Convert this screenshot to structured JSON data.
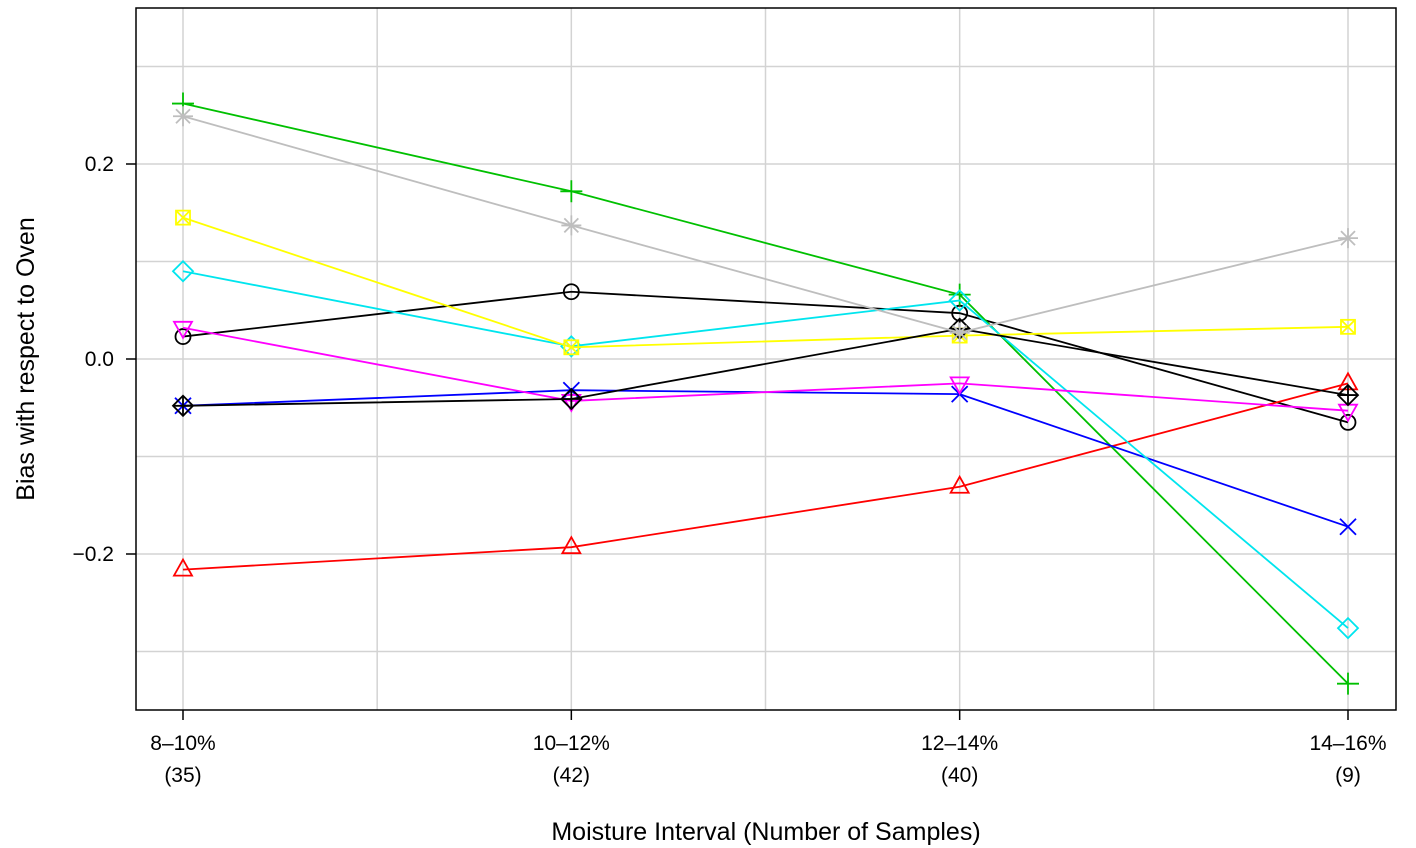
{
  "chart_data": {
    "type": "line",
    "title": "",
    "xlabel": "Moisture Interval (Number of Samples)",
    "ylabel": "Bias with respect to Oven",
    "categories": [
      "8–10%",
      "10–12%",
      "12–14%",
      "14–16%"
    ],
    "category_counts": [
      "(35)",
      "(42)",
      "(40)",
      "(9)"
    ],
    "ylim": [
      -0.36,
      0.36
    ],
    "yticks": [
      {
        "value": -0.2,
        "label": "−0.2"
      },
      {
        "value": 0.0,
        "label": "0.0"
      },
      {
        "value": 0.2,
        "label": "0.2"
      }
    ],
    "grid": true,
    "legend": "none",
    "series": [
      {
        "color": "#000000",
        "marker": "circle",
        "values": [
          0.023,
          0.069,
          0.047,
          -0.065
        ]
      },
      {
        "color": "#ff0000",
        "marker": "triangle-up",
        "values": [
          -0.216,
          -0.193,
          -0.131,
          -0.025
        ]
      },
      {
        "color": "#00c000",
        "marker": "plus",
        "values": [
          0.262,
          0.172,
          0.066,
          -0.333
        ]
      },
      {
        "color": "#0000ff",
        "marker": "x",
        "values": [
          -0.048,
          -0.032,
          -0.036,
          -0.172
        ]
      },
      {
        "color": "#00e5ee",
        "marker": "diamond",
        "values": [
          0.09,
          0.013,
          0.06,
          -0.276
        ]
      },
      {
        "color": "#ff00ff",
        "marker": "triangle-down",
        "values": [
          0.032,
          -0.043,
          -0.025,
          -0.053
        ]
      },
      {
        "color": "#ffff00",
        "marker": "square-x",
        "values": [
          0.145,
          0.012,
          0.024,
          0.033
        ]
      },
      {
        "color": "#000000",
        "marker": "diamond-plus",
        "values": [
          -0.048,
          -0.041,
          0.031,
          -0.037
        ]
      },
      {
        "color": "#bebebe",
        "marker": "asterisk",
        "values": [
          0.249,
          0.137,
          0.027,
          0.124
        ]
      }
    ]
  }
}
